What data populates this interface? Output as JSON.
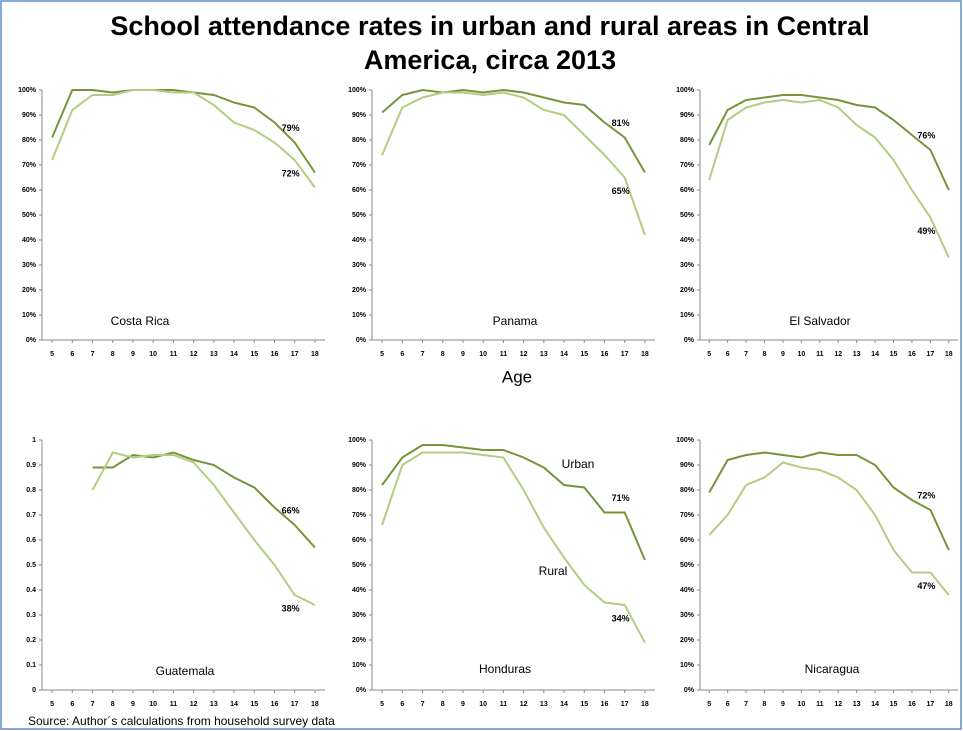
{
  "title": "School attendance rates in urban and rural areas in Central America, circa 2013",
  "x_label": "Age",
  "source": "Source: Author´s calculations  from household  survey data",
  "chart_data": [
    {
      "type": "line",
      "label": "Costa Rica",
      "x": [
        5,
        6,
        7,
        8,
        9,
        10,
        11,
        12,
        13,
        14,
        15,
        16,
        17,
        18
      ],
      "xlim": [
        4.5,
        18.5
      ],
      "xticks": [
        5,
        6,
        7,
        8,
        9,
        10,
        11,
        12,
        13,
        14,
        15,
        16,
        17,
        18
      ],
      "ylim": [
        0,
        100
      ],
      "yticks": [
        {
          "value": 0,
          "label": "0%"
        },
        {
          "value": 10,
          "label": "10%"
        },
        {
          "value": 20,
          "label": "20%"
        },
        {
          "value": 30,
          "label": "30%"
        },
        {
          "value": 40,
          "label": "40%"
        },
        {
          "value": 50,
          "label": "50%"
        },
        {
          "value": 60,
          "label": "60%"
        },
        {
          "value": 70,
          "label": "70%"
        },
        {
          "value": 80,
          "label": "80%"
        },
        {
          "value": 90,
          "label": "90%"
        },
        {
          "value": 100,
          "label": "100%"
        }
      ],
      "series": [
        {
          "color": "#77933c",
          "values": [
            81,
            100,
            100,
            99,
            100,
            100,
            100,
            99,
            98,
            95,
            93,
            87,
            79,
            67
          ],
          "value_labels": [
            null,
            null,
            null,
            null,
            null,
            null,
            null,
            null,
            null,
            null,
            null,
            null,
            "79%",
            null
          ]
        },
        {
          "color": "#b3cc82",
          "values": [
            72,
            92,
            98,
            98,
            100,
            100,
            99,
            99,
            94,
            87,
            84,
            79,
            72,
            61
          ],
          "value_labels": [
            null,
            null,
            null,
            null,
            null,
            null,
            null,
            null,
            null,
            null,
            null,
            null,
            "72%",
            null
          ]
        }
      ]
    },
    {
      "type": "line",
      "label": "Panama",
      "x": [
        5,
        6,
        7,
        8,
        9,
        10,
        11,
        12,
        13,
        14,
        15,
        16,
        17,
        18
      ],
      "xlim": [
        4.5,
        18.5
      ],
      "xticks": [
        5,
        6,
        7,
        8,
        9,
        10,
        11,
        12,
        13,
        14,
        15,
        16,
        17,
        18
      ],
      "ylim": [
        0,
        100
      ],
      "yticks": [
        {
          "value": 0,
          "label": "0%"
        },
        {
          "value": 10,
          "label": "10%"
        },
        {
          "value": 20,
          "label": "20%"
        },
        {
          "value": 30,
          "label": "30%"
        },
        {
          "value": 40,
          "label": "40%"
        },
        {
          "value": 50,
          "label": "50%"
        },
        {
          "value": 60,
          "label": "60%"
        },
        {
          "value": 70,
          "label": "70%"
        },
        {
          "value": 80,
          "label": "80%"
        },
        {
          "value": 90,
          "label": "90%"
        },
        {
          "value": 100,
          "label": "100%"
        }
      ],
      "series": [
        {
          "color": "#77933c",
          "values": [
            91,
            98,
            100,
            99,
            100,
            99,
            100,
            99,
            97,
            95,
            94,
            87,
            81,
            67
          ],
          "value_labels": [
            null,
            null,
            null,
            null,
            null,
            null,
            null,
            null,
            null,
            null,
            null,
            null,
            "81%",
            null
          ]
        },
        {
          "color": "#b3cc82",
          "values": [
            74,
            93,
            97,
            99,
            99,
            98,
            99,
            97,
            92,
            90,
            82,
            74,
            65,
            42
          ],
          "value_labels": [
            null,
            null,
            null,
            null,
            null,
            null,
            null,
            null,
            null,
            null,
            null,
            null,
            "65%",
            null
          ]
        }
      ]
    },
    {
      "type": "line",
      "label": "El Salvador",
      "x": [
        5,
        6,
        7,
        8,
        9,
        10,
        11,
        12,
        13,
        14,
        15,
        16,
        17,
        18
      ],
      "xlim": [
        4.5,
        18.5
      ],
      "xticks": [
        5,
        6,
        7,
        8,
        9,
        10,
        11,
        12,
        13,
        14,
        15,
        16,
        17,
        18
      ],
      "ylim": [
        0,
        100
      ],
      "yticks": [
        {
          "value": 0,
          "label": "0%"
        },
        {
          "value": 10,
          "label": "10%"
        },
        {
          "value": 20,
          "label": "20%"
        },
        {
          "value": 30,
          "label": "30%"
        },
        {
          "value": 40,
          "label": "40%"
        },
        {
          "value": 50,
          "label": "50%"
        },
        {
          "value": 60,
          "label": "60%"
        },
        {
          "value": 70,
          "label": "70%"
        },
        {
          "value": 80,
          "label": "80%"
        },
        {
          "value": 90,
          "label": "90%"
        },
        {
          "value": 100,
          "label": "100%"
        }
      ],
      "series": [
        {
          "color": "#77933c",
          "values": [
            78,
            92,
            96,
            97,
            98,
            98,
            97,
            96,
            94,
            93,
            88,
            82,
            76,
            60
          ],
          "value_labels": [
            null,
            null,
            null,
            null,
            null,
            null,
            null,
            null,
            null,
            null,
            null,
            null,
            "76%",
            null
          ]
        },
        {
          "color": "#b3cc82",
          "values": [
            64,
            88,
            93,
            95,
            96,
            95,
            96,
            93,
            86,
            81,
            72,
            60,
            49,
            33
          ],
          "value_labels": [
            null,
            null,
            null,
            null,
            null,
            null,
            null,
            null,
            null,
            null,
            null,
            null,
            "49%",
            null
          ]
        }
      ]
    },
    {
      "type": "line",
      "label": "Guatemala",
      "x": [
        5,
        6,
        7,
        8,
        9,
        10,
        11,
        12,
        13,
        14,
        15,
        16,
        17,
        18
      ],
      "xlim": [
        4.5,
        18.5
      ],
      "xticks": [
        5,
        6,
        7,
        8,
        9,
        10,
        11,
        12,
        13,
        14,
        15,
        16,
        17,
        18
      ],
      "ylim": [
        0,
        1
      ],
      "yticks": [
        0,
        0.1,
        0.2,
        0.3,
        0.4,
        0.5,
        0.6,
        0.7,
        0.8,
        0.9,
        1
      ],
      "series": [
        {
          "color": "#77933c",
          "values": [
            null,
            null,
            0.89,
            0.89,
            0.94,
            0.93,
            0.95,
            0.92,
            0.9,
            0.85,
            0.81,
            0.73,
            0.66,
            0.57
          ],
          "value_labels": [
            null,
            null,
            null,
            null,
            null,
            null,
            null,
            null,
            null,
            null,
            null,
            null,
            "66%",
            null
          ]
        },
        {
          "color": "#b3cc82",
          "values": [
            null,
            null,
            0.8,
            0.95,
            0.93,
            0.94,
            0.94,
            0.91,
            0.82,
            0.71,
            0.6,
            0.5,
            0.38,
            0.34
          ],
          "value_labels": [
            null,
            null,
            null,
            null,
            null,
            null,
            null,
            null,
            null,
            null,
            null,
            null,
            "38%",
            null
          ]
        }
      ]
    },
    {
      "type": "line",
      "label": "Honduras",
      "x": [
        5,
        6,
        7,
        8,
        9,
        10,
        11,
        12,
        13,
        14,
        15,
        16,
        17,
        18
      ],
      "xlim": [
        4.5,
        18.5
      ],
      "xticks": [
        5,
        6,
        7,
        8,
        9,
        10,
        11,
        12,
        13,
        14,
        15,
        16,
        17,
        18
      ],
      "ylim": [
        0,
        100
      ],
      "yticks": [
        {
          "value": 0,
          "label": "0%"
        },
        {
          "value": 10,
          "label": "10%"
        },
        {
          "value": 20,
          "label": "20%"
        },
        {
          "value": 30,
          "label": "30%"
        },
        {
          "value": 40,
          "label": "40%"
        },
        {
          "value": 50,
          "label": "50%"
        },
        {
          "value": 60,
          "label": "60%"
        },
        {
          "value": 70,
          "label": "70%"
        },
        {
          "value": 80,
          "label": "80%"
        },
        {
          "value": 90,
          "label": "90%"
        },
        {
          "value": 100,
          "label": "100%"
        }
      ],
      "series": [
        {
          "name": "Urban",
          "color": "#77933c",
          "values": [
            82,
            93,
            98,
            98,
            97,
            96,
            96,
            93,
            89,
            82,
            81,
            71,
            71,
            52
          ],
          "value_labels": [
            null,
            null,
            null,
            null,
            null,
            null,
            null,
            null,
            null,
            null,
            null,
            null,
            "71%",
            null
          ]
        },
        {
          "name": "Rural",
          "color": "#b3cc82",
          "values": [
            66,
            90,
            95,
            95,
            95,
            94,
            93,
            80,
            65,
            53,
            42,
            35,
            34,
            19
          ],
          "value_labels": [
            null,
            null,
            null,
            null,
            null,
            null,
            null,
            null,
            null,
            null,
            null,
            null,
            "34%",
            null
          ]
        }
      ]
    },
    {
      "type": "line",
      "label": "Nicaragua",
      "x": [
        5,
        6,
        7,
        8,
        9,
        10,
        11,
        12,
        13,
        14,
        15,
        16,
        17,
        18
      ],
      "xlim": [
        4.5,
        18.5
      ],
      "xticks": [
        5,
        6,
        7,
        8,
        9,
        10,
        11,
        12,
        13,
        14,
        15,
        16,
        17,
        18
      ],
      "ylim": [
        0,
        100
      ],
      "yticks": [
        {
          "value": 0,
          "label": "0%"
        },
        {
          "value": 10,
          "label": "10%"
        },
        {
          "value": 20,
          "label": "20%"
        },
        {
          "value": 30,
          "label": "30%"
        },
        {
          "value": 40,
          "label": "40%"
        },
        {
          "value": 50,
          "label": "50%"
        },
        {
          "value": 60,
          "label": "60%"
        },
        {
          "value": 70,
          "label": "70%"
        },
        {
          "value": 80,
          "label": "80%"
        },
        {
          "value": 90,
          "label": "90%"
        },
        {
          "value": 100,
          "label": "100%"
        }
      ],
      "series": [
        {
          "color": "#77933c",
          "values": [
            79,
            92,
            94,
            95,
            94,
            93,
            95,
            94,
            94,
            90,
            81,
            76,
            72,
            56
          ],
          "value_labels": [
            null,
            null,
            null,
            null,
            null,
            null,
            null,
            null,
            null,
            null,
            null,
            null,
            "72%",
            null
          ]
        },
        {
          "color": "#b3cc82",
          "values": [
            62,
            70,
            82,
            85,
            91,
            89,
            88,
            85,
            80,
            70,
            56,
            47,
            47,
            38
          ],
          "value_labels": [
            null,
            null,
            null,
            null,
            null,
            null,
            null,
            null,
            null,
            null,
            null,
            null,
            "47%",
            null
          ]
        }
      ]
    }
  ]
}
